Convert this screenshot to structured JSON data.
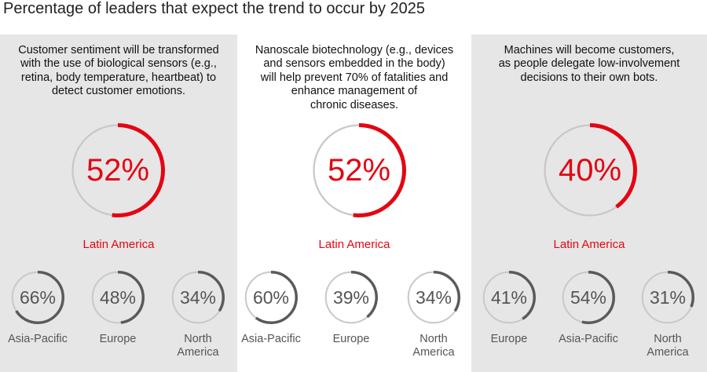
{
  "title": "Percentage of leaders that expect the trend to occur by 2025",
  "colors": {
    "accent": "#e30613",
    "track": "#c8c8c8",
    "small_arc": "#5a5a5a",
    "panel_grey": "#e6e6e6"
  },
  "chart_data": [
    {
      "type": "donut",
      "title": "Customer sentiment will be transformed with the use of biological sensors (e.g., retina, body temperature, heartbeat) to detect customer emotions.",
      "description_lines": [
        "Customer sentiment will be transformed",
        "with the use of biological sensors (e.g.,",
        "retina, body temperature, heartbeat) to",
        "detect customer emotions."
      ],
      "highlight": {
        "region": "Latin America",
        "value": 52,
        "label": "52%"
      },
      "regions": [
        {
          "name_lines": [
            "Asia-Pacific"
          ],
          "value": 66,
          "label": "66%"
        },
        {
          "name_lines": [
            "Europe"
          ],
          "value": 48,
          "label": "48%"
        },
        {
          "name_lines": [
            "North",
            "America"
          ],
          "value": 34,
          "label": "34%"
        }
      ]
    },
    {
      "type": "donut",
      "title": "Nanoscale biotechnology (e.g., devices and sensors embedded in the body) will help prevent 70% of fatalities and enhance management of chronic diseases.",
      "description_lines": [
        "Nanoscale biotechnology (e.g., devices",
        "and sensors embedded in the body)",
        "will help prevent 70% of fatalities and",
        "enhance management of",
        "chronic diseases."
      ],
      "highlight": {
        "region": "Latin America",
        "value": 52,
        "label": "52%"
      },
      "regions": [
        {
          "name_lines": [
            "Asia-Pacific"
          ],
          "value": 60,
          "label": "60%"
        },
        {
          "name_lines": [
            "Europe"
          ],
          "value": 39,
          "label": "39%"
        },
        {
          "name_lines": [
            "North",
            "America"
          ],
          "value": 34,
          "label": "34%"
        }
      ]
    },
    {
      "type": "donut",
      "title": "Machines will become customers, as people delegate low-involvement decisions to their own bots.",
      "description_lines": [
        "Machines will become customers,",
        "as people delegate low-involvement",
        "decisions to their own bots."
      ],
      "highlight": {
        "region": "Latin America",
        "value": 40,
        "label": "40%"
      },
      "regions": [
        {
          "name_lines": [
            "Europe"
          ],
          "value": 41,
          "label": "41%"
        },
        {
          "name_lines": [
            "Asia-Pacific"
          ],
          "value": 54,
          "label": "54%"
        },
        {
          "name_lines": [
            "North",
            "America"
          ],
          "value": 31,
          "label": "31%"
        }
      ]
    }
  ]
}
